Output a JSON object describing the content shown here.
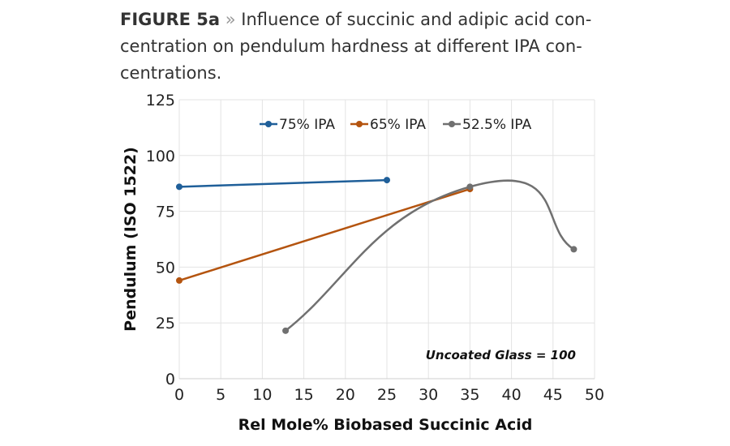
{
  "caption": {
    "label": "FIGURE 5a",
    "separator": "»",
    "text": "Influence of succinic and adipic acid con-centration on pendulum hardness at different IPA con-centrations."
  },
  "chart_data": {
    "type": "line",
    "title": "",
    "xlabel": "Rel Mole% Biobased Succinic Acid",
    "ylabel": "Pendulum (ISO 1522)",
    "xlim": [
      0,
      50
    ],
    "ylim": [
      0,
      125
    ],
    "xticks": [
      0,
      5,
      10,
      15,
      20,
      25,
      30,
      35,
      40,
      45,
      50
    ],
    "yticks": [
      0,
      25,
      50,
      75,
      100,
      125
    ],
    "grid": true,
    "legend_position": "top",
    "annotation": "Uncoated Glass = 100",
    "series": [
      {
        "name": "75% IPA",
        "color": "#1f5f99",
        "smooth": false,
        "x": [
          0,
          25
        ],
        "y": [
          86,
          89
        ]
      },
      {
        "name": "65% IPA",
        "color": "#b4540f",
        "smooth": false,
        "x": [
          0,
          35
        ],
        "y": [
          44,
          85
        ]
      },
      {
        "name": "52.5% IPA",
        "color": "#707070",
        "smooth": true,
        "x": [
          12.8,
          35,
          47.5
        ],
        "y": [
          21.5,
          86,
          58
        ]
      }
    ]
  }
}
